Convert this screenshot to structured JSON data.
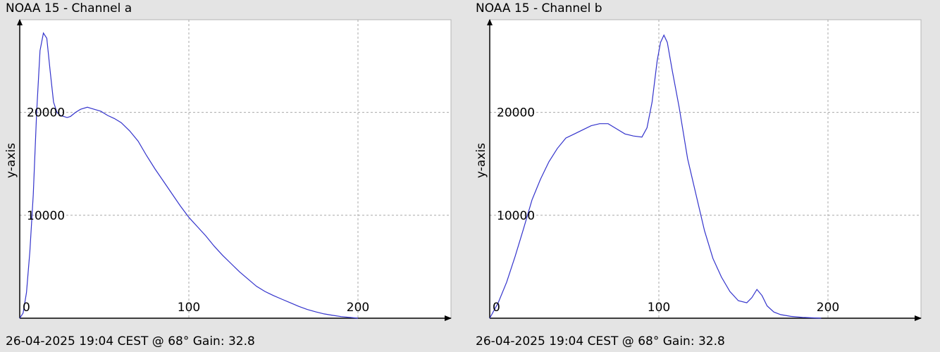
{
  "chart_data": [
    {
      "type": "line",
      "title": "NOAA 15 - Channel a",
      "xlabel": "",
      "ylabel": "y-axis",
      "footer": "26-04-2025 19:04 CEST @ 68° Gain: 32.8",
      "xlim": [
        0,
        255
      ],
      "ylim": [
        0,
        29000
      ],
      "x_ticks": [
        0,
        100,
        200
      ],
      "y_ticks": [
        10000,
        20000
      ],
      "grid": true,
      "series_color": "#3333cc",
      "x": [
        0,
        2,
        4,
        6,
        8,
        10,
        12,
        14,
        16,
        18,
        20,
        22,
        24,
        26,
        28,
        30,
        33,
        36,
        40,
        44,
        48,
        52,
        56,
        60,
        65,
        70,
        75,
        80,
        85,
        90,
        95,
        100,
        105,
        110,
        115,
        120,
        125,
        130,
        135,
        140,
        145,
        150,
        155,
        160,
        165,
        170,
        175,
        180,
        185,
        190,
        195,
        200
      ],
      "y": [
        0,
        500,
        2500,
        6500,
        12000,
        20000,
        26000,
        27700,
        27200,
        24000,
        21000,
        20000,
        19700,
        19600,
        19500,
        19600,
        20000,
        20300,
        20500,
        20300,
        20100,
        19700,
        19400,
        19000,
        18200,
        17200,
        15800,
        14500,
        13300,
        12100,
        10900,
        9800,
        8900,
        8000,
        7000,
        6100,
        5300,
        4500,
        3800,
        3100,
        2600,
        2200,
        1850,
        1500,
        1150,
        850,
        620,
        420,
        280,
        160,
        80,
        0
      ]
    },
    {
      "type": "line",
      "title": "NOAA 15 - Channel b",
      "xlabel": "",
      "ylabel": "y-axis",
      "footer": "26-04-2025 19:04 CEST @ 68° Gain: 32.8",
      "xlim": [
        0,
        255
      ],
      "ylim": [
        0,
        29000
      ],
      "x_ticks": [
        0,
        100,
        200
      ],
      "y_ticks": [
        10000,
        20000
      ],
      "grid": true,
      "series_color": "#3333cc",
      "x": [
        0,
        5,
        10,
        15,
        20,
        25,
        30,
        35,
        40,
        45,
        50,
        55,
        60,
        65,
        70,
        75,
        80,
        85,
        90,
        93,
        96,
        99,
        101,
        103,
        105,
        108,
        112,
        117,
        122,
        127,
        132,
        137,
        142,
        147,
        152,
        155,
        158,
        161,
        164,
        168,
        172,
        178,
        185,
        192,
        196
      ],
      "y": [
        0,
        1500,
        3500,
        6000,
        8700,
        11500,
        13500,
        15200,
        16500,
        17500,
        17900,
        18300,
        18700,
        18900,
        18900,
        18400,
        17900,
        17700,
        17600,
        18500,
        21000,
        25000,
        26800,
        27500,
        26800,
        24000,
        20500,
        15500,
        12000,
        8500,
        5800,
        4000,
        2600,
        1700,
        1500,
        2000,
        2800,
        2200,
        1200,
        600,
        350,
        180,
        80,
        30,
        0
      ]
    }
  ]
}
